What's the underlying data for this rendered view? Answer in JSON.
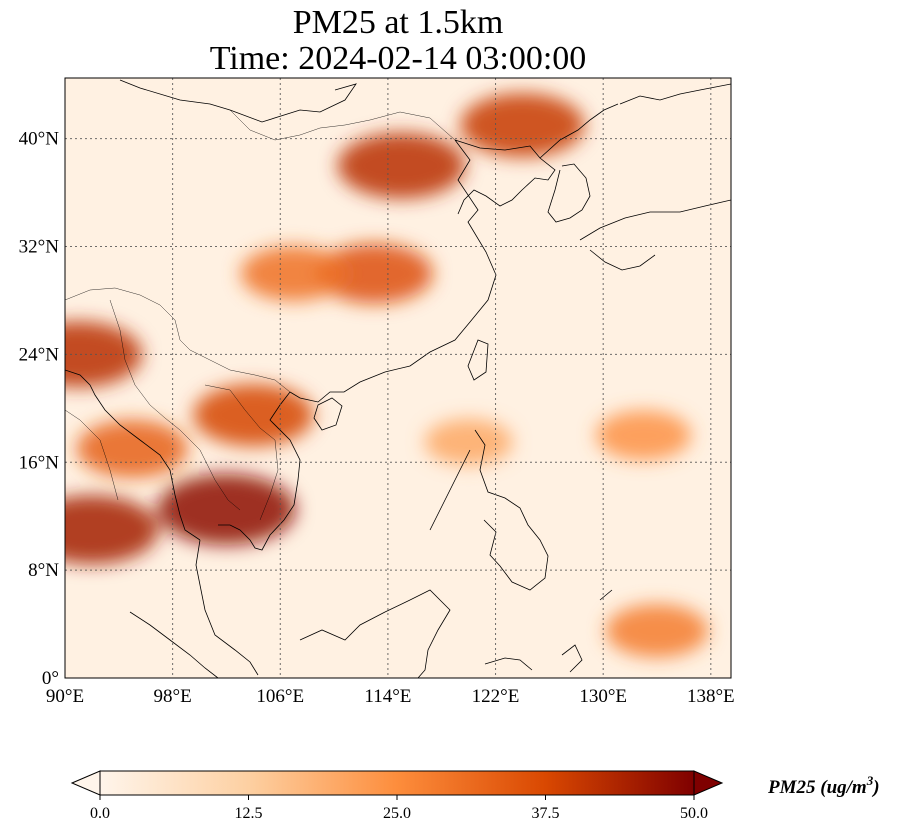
{
  "title": {
    "line1": "PM25 at 1.5km",
    "line2": "Time: 2024-02-14 03:00:00"
  },
  "axes": {
    "x_ticks": [
      "90°E",
      "98°E",
      "106°E",
      "114°E",
      "122°E",
      "130°E",
      "138°E"
    ],
    "y_ticks": [
      "0°",
      "8°N",
      "16°N",
      "24°N",
      "32°N",
      "40°N"
    ]
  },
  "colorbar": {
    "ticks": [
      "0.0",
      "12.5",
      "25.0",
      "37.5",
      "50.0"
    ],
    "label": "PM25 (ug/m",
    "label_sup": "3",
    "label_close": ")",
    "colors": [
      "#fff5eb",
      "#fdd0a2",
      "#fd8d3c",
      "#d94801",
      "#7f0000"
    ]
  },
  "chart_data": {
    "type": "heatmap",
    "variable": "PM25",
    "units": "ug/m3",
    "extent": {
      "lon": [
        90,
        139.5
      ],
      "lat": [
        0,
        44.5
      ]
    },
    "value_range": [
      0,
      50
    ],
    "colormap": "OrRd",
    "hotspots": [
      {
        "lon": 92,
        "lat": 11,
        "value": 45
      },
      {
        "lon": 102,
        "lat": 12.5,
        "value": 48
      },
      {
        "lon": 91,
        "lat": 24,
        "value": 42
      },
      {
        "lon": 104,
        "lat": 19.5,
        "value": 38
      },
      {
        "lon": 95,
        "lat": 17,
        "value": 33
      },
      {
        "lon": 115,
        "lat": 38,
        "value": 42
      },
      {
        "lon": 124,
        "lat": 41,
        "value": 40
      },
      {
        "lon": 113,
        "lat": 30,
        "value": 36
      },
      {
        "lon": 107,
        "lat": 30,
        "value": 30
      },
      {
        "lon": 134,
        "lat": 3.5,
        "value": 28
      },
      {
        "lon": 133,
        "lat": 18,
        "value": 24
      },
      {
        "lon": 120,
        "lat": 17.5,
        "value": 20
      }
    ]
  }
}
